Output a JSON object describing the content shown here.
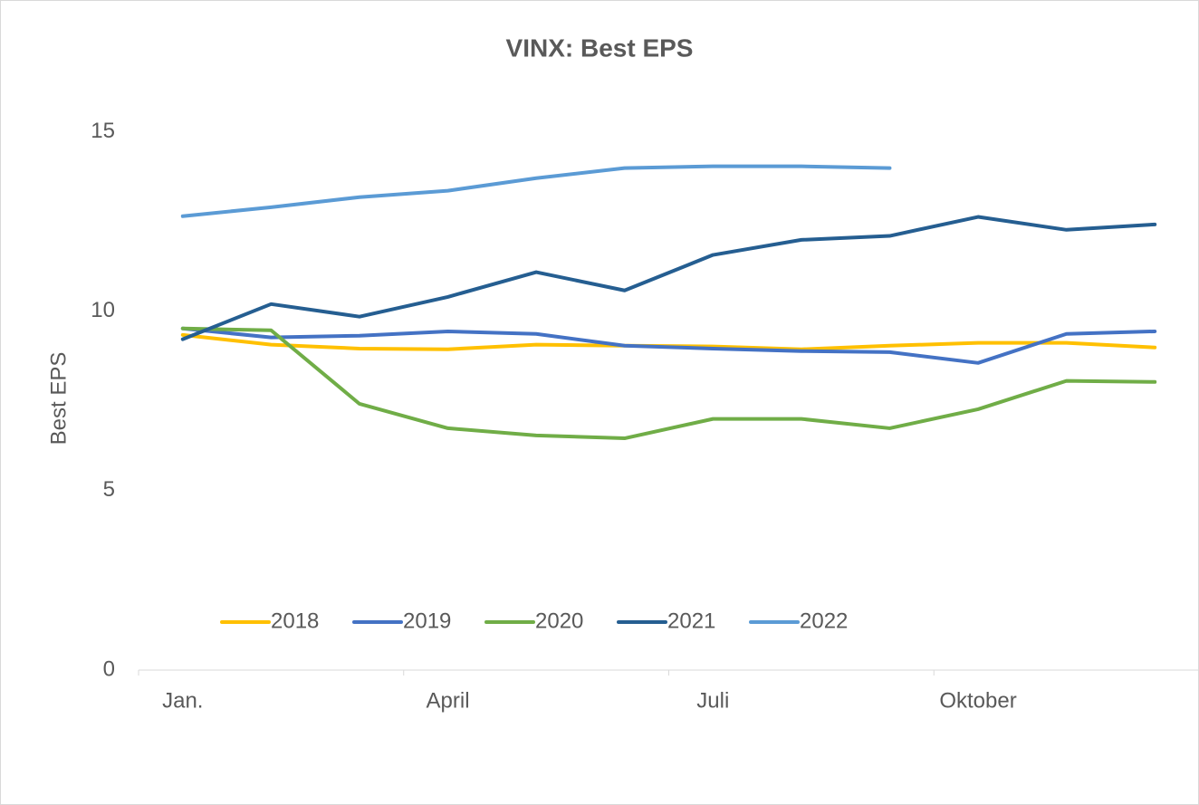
{
  "chart_data": {
    "type": "line",
    "title": "VINX: Best EPS",
    "y_label": "Best EPS",
    "categories": [
      "Jan.",
      null,
      null,
      "April",
      null,
      null,
      "Juli",
      null,
      null,
      "Oktober",
      null,
      null
    ],
    "series": [
      {
        "name": "2018",
        "color": "#FFC000",
        "values": [
          9.34,
          9.07,
          8.96,
          8.94,
          9.07,
          9.04,
          9.02,
          8.94,
          9.04,
          9.12,
          9.12,
          8.99
        ]
      },
      {
        "name": "2019",
        "color": "#4472C4",
        "values": [
          9.52,
          9.27,
          9.32,
          9.44,
          9.37,
          9.04,
          8.96,
          8.89,
          8.86,
          8.56,
          9.37,
          9.44
        ]
      },
      {
        "name": "2020",
        "color": "#70AD47",
        "values": [
          9.52,
          9.47,
          7.42,
          6.74,
          6.54,
          6.46,
          7.0,
          7.0,
          6.74,
          7.27,
          8.06,
          8.03
        ]
      },
      {
        "name": "2021",
        "color": "#255E91",
        "values": [
          9.22,
          10.2,
          9.85,
          10.4,
          11.09,
          10.58,
          11.57,
          11.99,
          12.1,
          12.63,
          12.27,
          12.42
        ]
      },
      {
        "name": "2022",
        "color": "#5B9BD5",
        "values": [
          12.65,
          12.9,
          13.18,
          13.36,
          13.71,
          13.99,
          14.04,
          14.04,
          13.99,
          null,
          null,
          null
        ]
      }
    ],
    "ylim": [
      0,
      16
    ],
    "yticks": [
      0,
      5,
      10,
      15
    ],
    "grid": false,
    "legend_position": "bottom"
  }
}
